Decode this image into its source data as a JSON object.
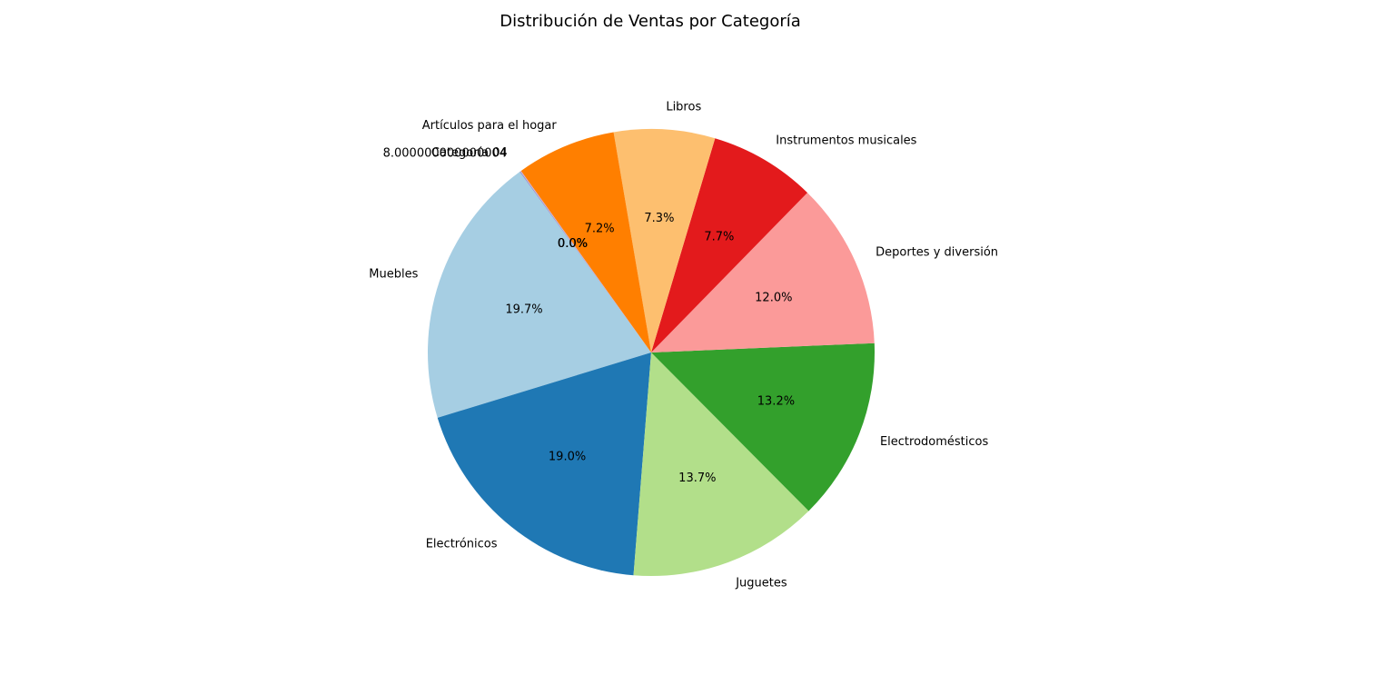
{
  "chart_data": {
    "type": "pie",
    "title": "Distribución de Ventas por Categoría",
    "start_angle_deg": 126,
    "direction": "counterclockwise",
    "slices": [
      {
        "label": "Muebles",
        "value": 19.7,
        "pct_label": "19.7%",
        "color": "#a6cee3"
      },
      {
        "label": "Electrónicos",
        "value": 19.0,
        "pct_label": "19.0%",
        "color": "#1f78b4"
      },
      {
        "label": "Juguetes",
        "value": 13.7,
        "pct_label": "13.7%",
        "color": "#b2df8a"
      },
      {
        "label": "Electrodomésticos",
        "value": 13.2,
        "pct_label": "13.2%",
        "color": "#33a02c"
      },
      {
        "label": "Deportes y diversión",
        "value": 12.0,
        "pct_label": "12.0%",
        "color": "#fb9a99"
      },
      {
        "label": "Instrumentos musicales",
        "value": 7.7,
        "pct_label": "7.7%",
        "color": "#e31a1c"
      },
      {
        "label": "Libros",
        "value": 7.3,
        "pct_label": "7.3%",
        "color": "#fdbf6f"
      },
      {
        "label": "Artículos para el hogar",
        "value": 7.2,
        "pct_label": "7.2%",
        "color": "#ff7f00"
      },
      {
        "label": "Categoría 04",
        "value": 0.08,
        "pct_label": "0.0%",
        "color": "#cab2d6"
      },
      {
        "label": "8.000000000000004",
        "value": 0.02,
        "pct_label": "0.0%",
        "color": "#6a3d9a"
      }
    ]
  }
}
